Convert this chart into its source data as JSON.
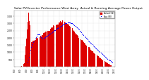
{
  "title": "Solar PV/Inverter Performance West Array  Actual & Running Average Power Output",
  "title_fontsize": 3.2,
  "bg_color": "#ffffff",
  "plot_bg_color": "#ffffff",
  "grid_color": "#aaaaaa",
  "bar_color": "#dd0000",
  "bar_edge_color": "#dd0000",
  "avg_color": "#0000ff",
  "legend_actual_color": "#dd0000",
  "legend_avg_color": "#0000ff",
  "legend_actual": "Actual (W)",
  "legend_avg": "Avg (W)",
  "y_ticks": [
    500,
    1000,
    1500,
    2000,
    2500,
    3000,
    3500
  ],
  "ylim": [
    0,
    3900
  ],
  "xlim": [
    0,
    130
  ],
  "n_bars": 130,
  "spike_index": 18,
  "spike_height": 3700,
  "peak_height": 3200,
  "peak_index": 62
}
